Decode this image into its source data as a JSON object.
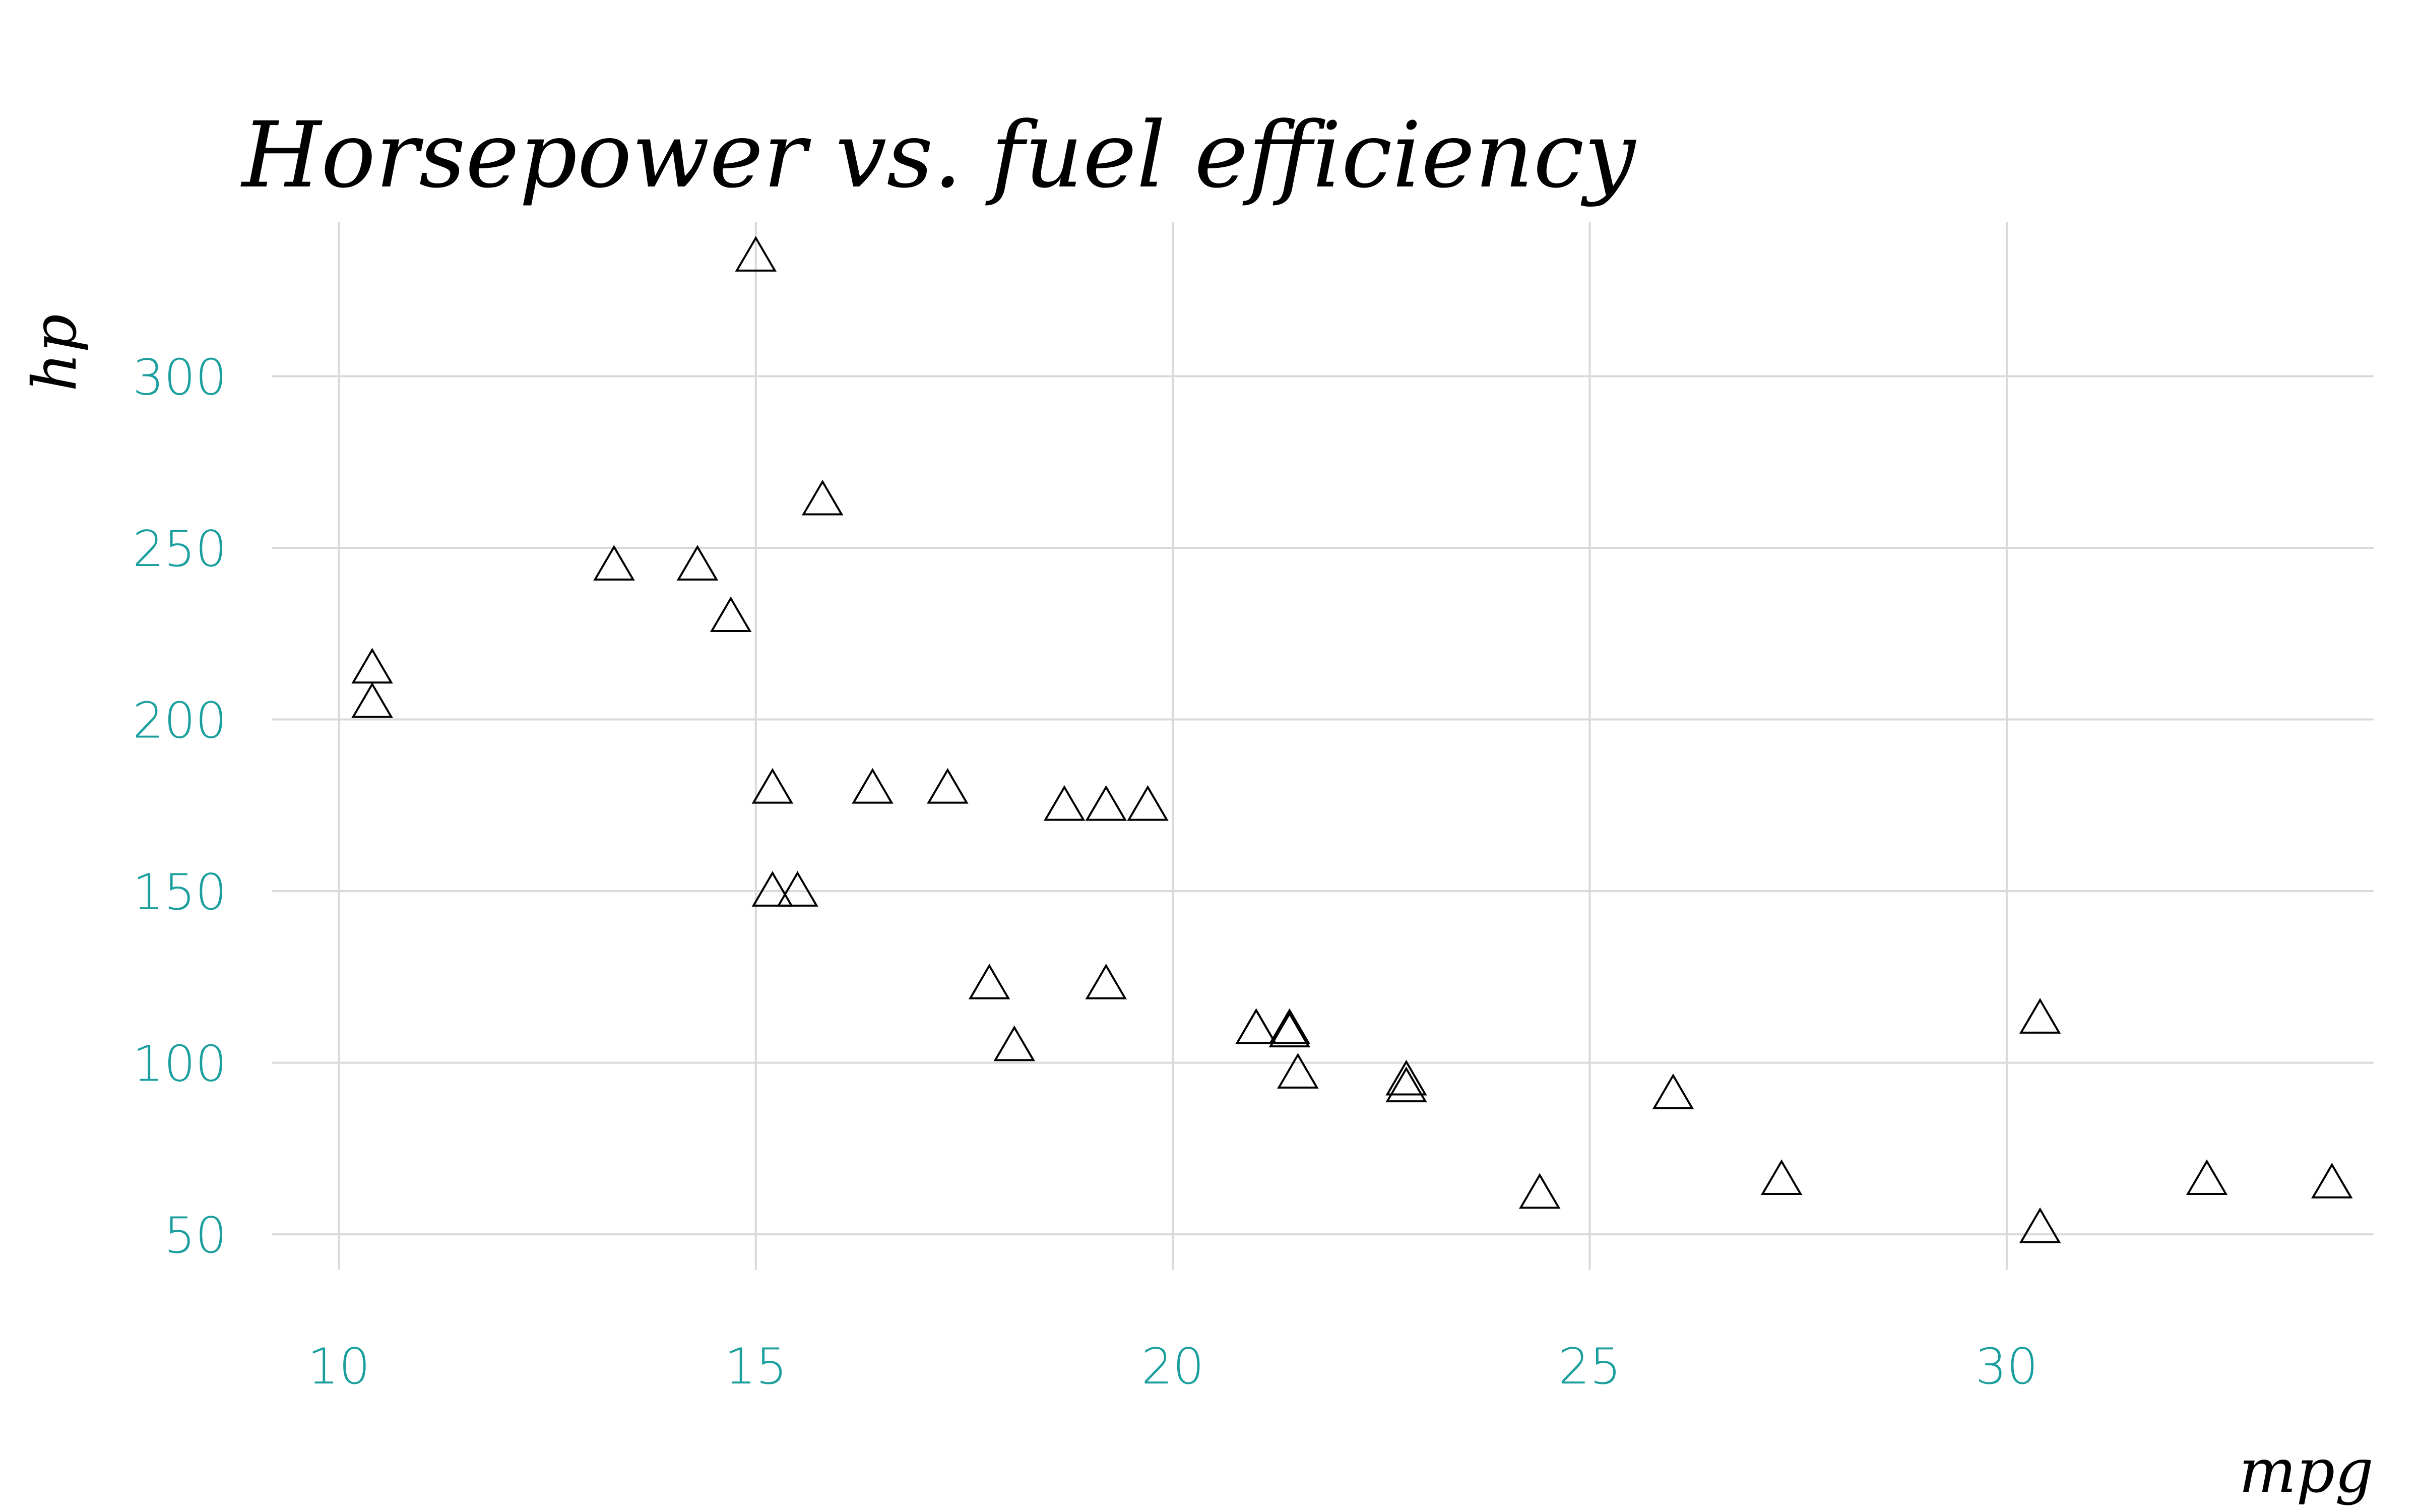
{
  "chart_data": {
    "type": "scatter",
    "title": "Horsepower vs. fuel efficiency",
    "xlabel": "mpg",
    "ylabel": "hp",
    "xlim": [
      9.2,
      34.4
    ],
    "ylim": [
      39.6,
      345
    ],
    "x_ticks": [
      10,
      15,
      20,
      25,
      30
    ],
    "y_ticks": [
      50,
      100,
      150,
      200,
      250,
      300
    ],
    "x_tick_labels": [
      "10",
      "15",
      "20",
      "25",
      "30"
    ],
    "y_tick_labels": [
      "50",
      "100",
      "150",
      "200",
      "250",
      "300"
    ],
    "grid": true,
    "marker": "open-triangle",
    "colors": {
      "tick_label": "#1b9e9e",
      "grid": "#d9d9d9",
      "marker": "#000000"
    },
    "points": [
      {
        "x": 21.0,
        "y": 110
      },
      {
        "x": 21.0,
        "y": 110
      },
      {
        "x": 22.8,
        "y": 93
      },
      {
        "x": 21.4,
        "y": 110
      },
      {
        "x": 18.7,
        "y": 175
      },
      {
        "x": 18.1,
        "y": 105
      },
      {
        "x": 14.3,
        "y": 245
      },
      {
        "x": 24.4,
        "y": 62
      },
      {
        "x": 22.8,
        "y": 95
      },
      {
        "x": 19.2,
        "y": 123
      },
      {
        "x": 17.8,
        "y": 123
      },
      {
        "x": 16.4,
        "y": 180
      },
      {
        "x": 17.3,
        "y": 180
      },
      {
        "x": 15.2,
        "y": 180
      },
      {
        "x": 10.4,
        "y": 205
      },
      {
        "x": 10.4,
        "y": 215
      },
      {
        "x": 14.7,
        "y": 230
      },
      {
        "x": 32.4,
        "y": 66
      },
      {
        "x": 30.4,
        "y": 52
      },
      {
        "x": 33.9,
        "y": 65
      },
      {
        "x": 21.5,
        "y": 97
      },
      {
        "x": 15.5,
        "y": 150
      },
      {
        "x": 15.2,
        "y": 150
      },
      {
        "x": 13.3,
        "y": 245
      },
      {
        "x": 19.2,
        "y": 175
      },
      {
        "x": 27.3,
        "y": 66
      },
      {
        "x": 26.0,
        "y": 91
      },
      {
        "x": 30.4,
        "y": 113
      },
      {
        "x": 15.8,
        "y": 264
      },
      {
        "x": 19.7,
        "y": 175
      },
      {
        "x": 15.0,
        "y": 335
      },
      {
        "x": 21.4,
        "y": 109
      }
    ]
  }
}
